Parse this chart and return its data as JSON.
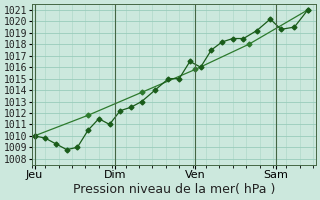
{
  "xlabel": "Pression niveau de la mer( hPa )",
  "bg_color": "#cce8dd",
  "plot_bg_color": "#cce8dd",
  "grid_color": "#99ccbb",
  "line_color1": "#1a5c1a",
  "line_color2": "#2d7a2d",
  "ylim": [
    1008,
    1021
  ],
  "ylim_display": [
    1007.5,
    1021.5
  ],
  "yticks": [
    1008,
    1009,
    1010,
    1011,
    1012,
    1013,
    1014,
    1015,
    1016,
    1017,
    1018,
    1019,
    1020,
    1021
  ],
  "xtick_labels": [
    "Jeu",
    "Dim",
    "Ven",
    "Sam"
  ],
  "xtick_positions": [
    0,
    3,
    6,
    9
  ],
  "xlim": [
    -0.1,
    10.5
  ],
  "series1_x": [
    0,
    0.4,
    0.8,
    1.2,
    1.6,
    2.0,
    2.4,
    2.8,
    3.2,
    3.6,
    4.0,
    4.5,
    5.0,
    5.4,
    5.8,
    6.2,
    6.6,
    7.0,
    7.4,
    7.8,
    8.3,
    8.8,
    9.2,
    9.7,
    10.2
  ],
  "series1_y": [
    1010,
    1009.8,
    1009.3,
    1008.8,
    1009,
    1010.5,
    1011.5,
    1011,
    1012.2,
    1012.5,
    1013.0,
    1014.0,
    1015.0,
    1015.0,
    1016.5,
    1016.0,
    1017.5,
    1018.2,
    1018.5,
    1018.5,
    1019.2,
    1020.2,
    1019.3,
    1019.5,
    1021.0
  ],
  "series2_x": [
    0,
    2.0,
    4.0,
    6.0,
    8.0,
    10.2
  ],
  "series2_y": [
    1010,
    1011.8,
    1013.8,
    1015.8,
    1018.0,
    1021.0
  ],
  "xlabel_fontsize": 9,
  "ytick_fontsize": 7,
  "xtick_fontsize": 8,
  "marker1": "D",
  "marker2": "D",
  "markersize1": 2.5,
  "markersize2": 2.5
}
